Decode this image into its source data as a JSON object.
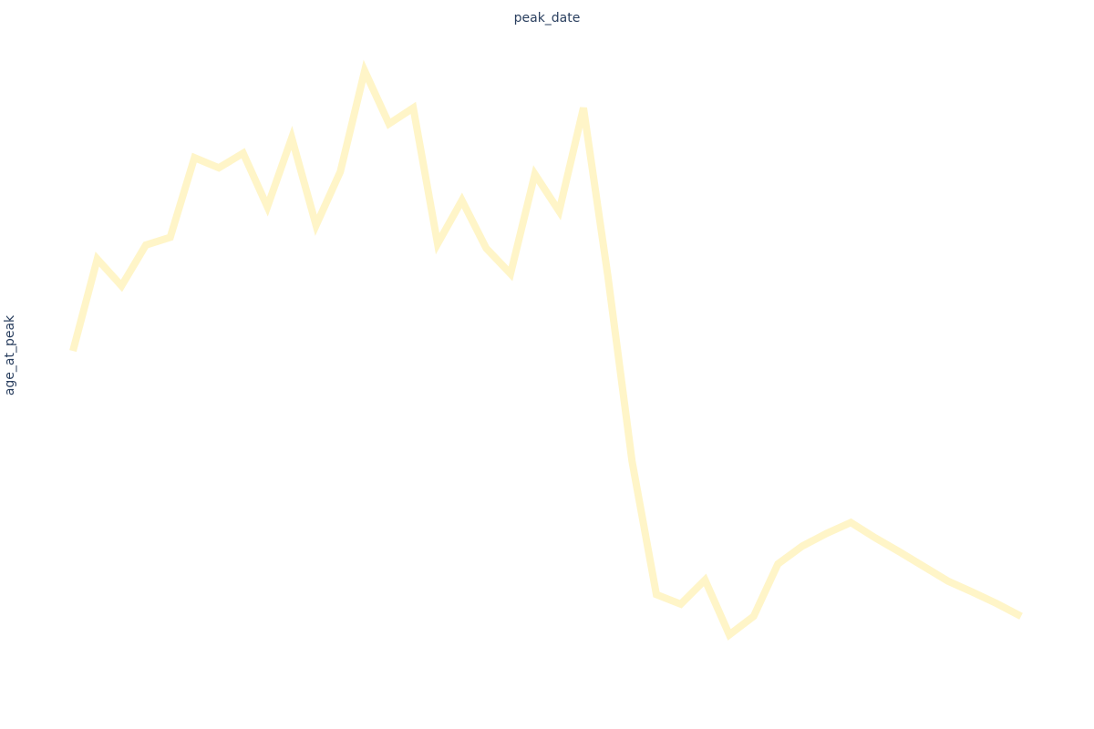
{
  "chart_data": {
    "type": "line",
    "title": "",
    "xlabel": "peak_date",
    "ylabel": "age_at_peak",
    "x": [
      1,
      2,
      3,
      4,
      5,
      6,
      7,
      8,
      9,
      10,
      11,
      12,
      13,
      14,
      15,
      16,
      17,
      18,
      19,
      20,
      21,
      22,
      23,
      24,
      25,
      26,
      27,
      28,
      29,
      30,
      31,
      32,
      33,
      34,
      35,
      36,
      37,
      38,
      39,
      40
    ],
    "xlim": [
      1,
      40
    ],
    "ylim": [
      0,
      100
    ],
    "series": [
      {
        "values": [
          50.7,
          65.1,
          60.9,
          67.3,
          68.5,
          81.0,
          79.4,
          81.7,
          73.3,
          84.1,
          70.4,
          78.8,
          94.6,
          86.3,
          88.8,
          67.5,
          74.3,
          66.8,
          62.8,
          78.4,
          72.6,
          88.8,
          62.5,
          33.4,
          12.5,
          11.0,
          14.8,
          6.2,
          9.1,
          17.3,
          20.1,
          22.1,
          23.8,
          21.4,
          19.2,
          16.9,
          14.6,
          12.9,
          11.1,
          9.1
        ],
        "color": "#fff5c8"
      }
    ],
    "grid": false,
    "legend": "none",
    "background": "#ffffff",
    "axis_title_color": "#2a3f5f"
  }
}
